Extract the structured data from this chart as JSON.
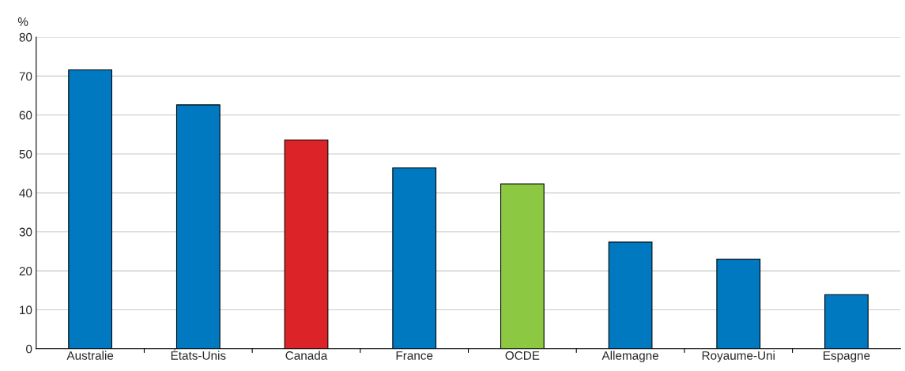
{
  "chart_data": {
    "type": "bar",
    "ylabel": "%",
    "categories": [
      "Australie",
      "États-Unis",
      "Canada",
      "France",
      "OCDE",
      "Allemagne",
      "Royaume-Uni",
      "Espagne"
    ],
    "values": [
      71.6,
      62.6,
      53.6,
      46.4,
      42.3,
      27.4,
      23.0,
      13.9
    ],
    "colors": [
      "#0079c1",
      "#0079c1",
      "#dc2328",
      "#0079c1",
      "#8cc841",
      "#0079c1",
      "#0079c1",
      "#0079c1"
    ],
    "ylim": [
      0,
      80
    ],
    "yticks": [
      0,
      10,
      20,
      30,
      40,
      50,
      60,
      70,
      80
    ],
    "grid": "y",
    "legend": false
  }
}
